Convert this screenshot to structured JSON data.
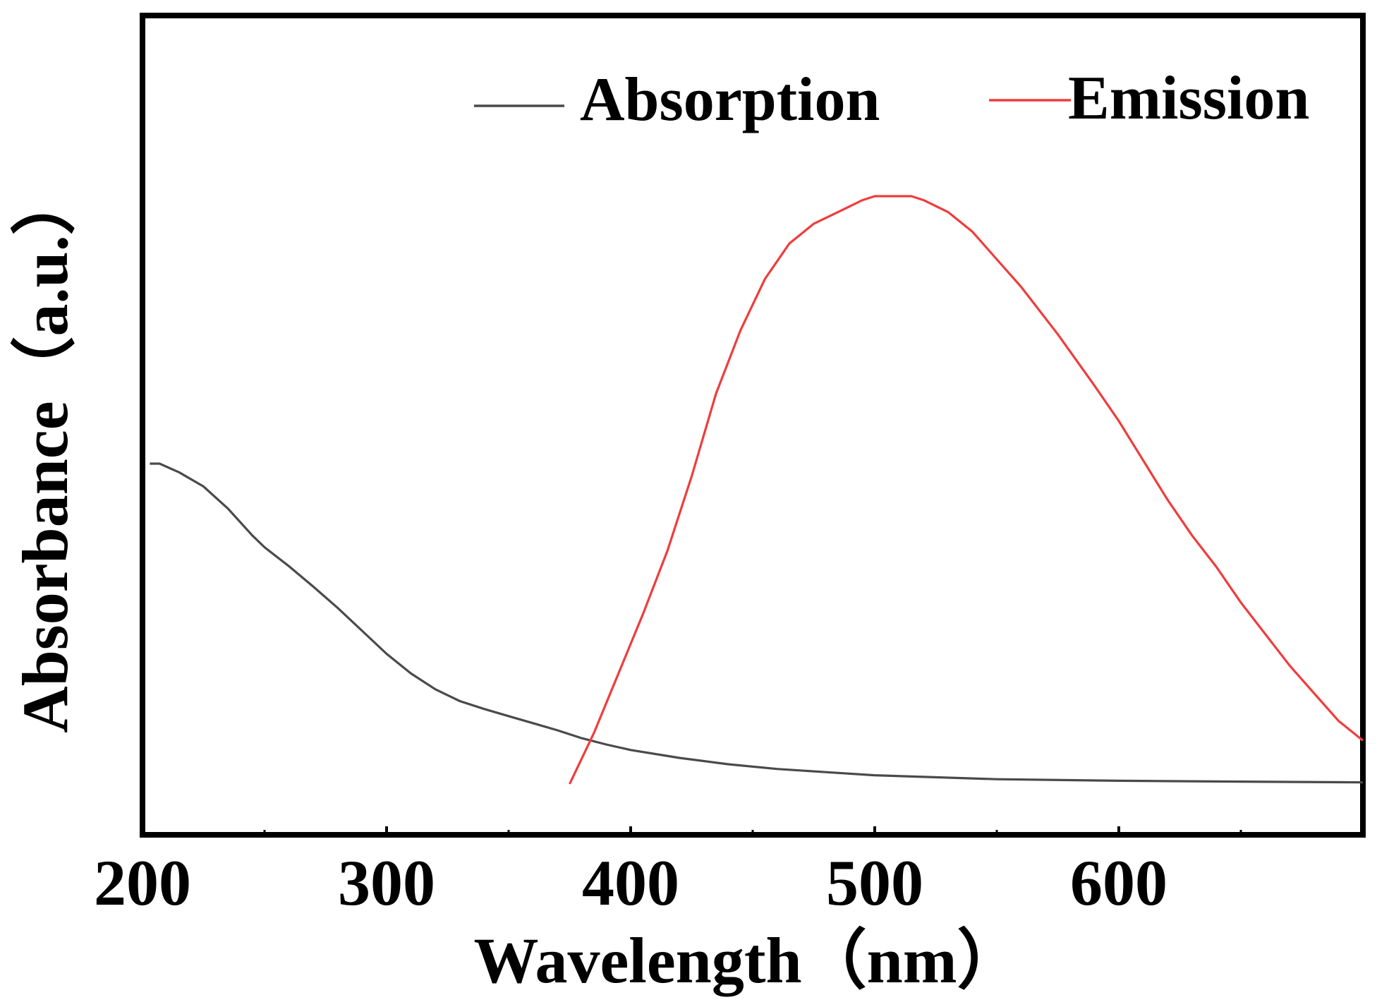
{
  "chart_data": {
    "type": "line",
    "title": "",
    "xlabel": "Wavelength（nm）",
    "ylabel": "Absorbance（a.u.）",
    "xlim": [
      200,
      700
    ],
    "ylim": [
      0,
      1
    ],
    "x_ticks": [
      200,
      300,
      400,
      500,
      600
    ],
    "x_tick_labels": [
      "200",
      "300",
      "400",
      "500",
      "600"
    ],
    "y_ticks_shown": false,
    "grid": false,
    "legend": {
      "placement": "top-right",
      "orientation": "horizontal"
    },
    "series": [
      {
        "name": "Absorption",
        "color": "#4a4a4a",
        "x": [
          203,
          207,
          215,
          225,
          235,
          245,
          250,
          260,
          270,
          280,
          290,
          300,
          310,
          320,
          330,
          340,
          350,
          360,
          370,
          380,
          390,
          400,
          420,
          440,
          460,
          480,
          500,
          520,
          550,
          600,
          650,
          700
        ],
        "y": [
          0.466,
          0.466,
          0.455,
          0.437,
          0.409,
          0.375,
          0.36,
          0.336,
          0.31,
          0.283,
          0.254,
          0.225,
          0.2,
          0.18,
          0.165,
          0.155,
          0.146,
          0.137,
          0.128,
          0.118,
          0.11,
          0.103,
          0.093,
          0.085,
          0.079,
          0.075,
          0.071,
          0.069,
          0.066,
          0.064,
          0.063,
          0.062
        ]
      },
      {
        "name": "Emission",
        "color": "#f03c3c",
        "x": [
          375,
          385,
          395,
          405,
          415,
          425,
          435,
          445,
          455,
          465,
          475,
          485,
          495,
          500,
          505,
          515,
          520,
          530,
          540,
          550,
          560,
          575,
          590,
          600,
          610,
          620,
          630,
          640,
          650,
          660,
          670,
          680,
          690,
          700
        ],
        "y": [
          0.06,
          0.125,
          0.2,
          0.275,
          0.355,
          0.45,
          0.555,
          0.635,
          0.7,
          0.745,
          0.77,
          0.785,
          0.8,
          0.805,
          0.805,
          0.805,
          0.8,
          0.785,
          0.76,
          0.725,
          0.69,
          0.63,
          0.565,
          0.52,
          0.47,
          0.42,
          0.375,
          0.335,
          0.29,
          0.25,
          0.21,
          0.175,
          0.14,
          0.115
        ]
      }
    ]
  }
}
